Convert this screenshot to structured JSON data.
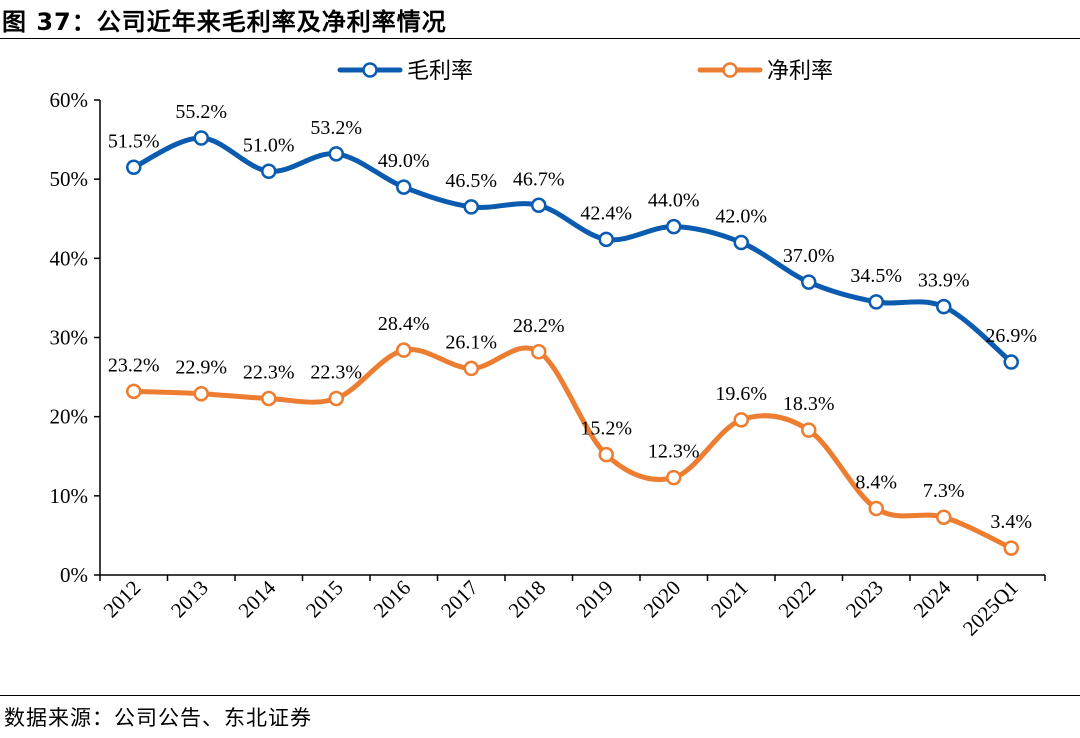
{
  "header": {
    "title": "图 37：公司近年来毛利率及净利率情况"
  },
  "footer": {
    "source": "数据来源：公司公告、东北证券"
  },
  "colors": {
    "gross": "#0B5CB0",
    "net": "#ED7D31",
    "axis": "#000000"
  },
  "chart_data": {
    "type": "line",
    "categories": [
      "2012",
      "2013",
      "2014",
      "2015",
      "2016",
      "2017",
      "2018",
      "2019",
      "2020",
      "2021",
      "2022",
      "2023",
      "2024",
      "2025Q1"
    ],
    "series": [
      {
        "name": "毛利率",
        "values": [
          51.5,
          55.2,
          51.0,
          53.2,
          49.0,
          46.5,
          46.7,
          42.4,
          44.0,
          42.0,
          37.0,
          34.5,
          33.9,
          26.9
        ],
        "labels": [
          "51.5%",
          "55.2%",
          "51.0%",
          "53.2%",
          "49.0%",
          "46.5%",
          "46.7%",
          "42.4%",
          "44.0%",
          "42.0%",
          "37.0%",
          "34.5%",
          "33.9%",
          "26.9%"
        ]
      },
      {
        "name": "净利率",
        "values": [
          23.2,
          22.9,
          22.3,
          22.3,
          28.4,
          26.1,
          28.2,
          15.2,
          12.3,
          19.6,
          18.3,
          8.4,
          7.3,
          3.4
        ],
        "labels": [
          "23.2%",
          "22.9%",
          "22.3%",
          "22.3%",
          "28.4%",
          "26.1%",
          "28.2%",
          "15.2%",
          "12.3%",
          "19.6%",
          "18.3%",
          "8.4%",
          "7.3%",
          "3.4%"
        ]
      }
    ],
    "ylim": [
      0,
      60
    ],
    "yticks": [
      "0%",
      "10%",
      "20%",
      "30%",
      "40%",
      "50%",
      "60%"
    ],
    "legend": "top-center",
    "grid": false,
    "smooth": true
  }
}
